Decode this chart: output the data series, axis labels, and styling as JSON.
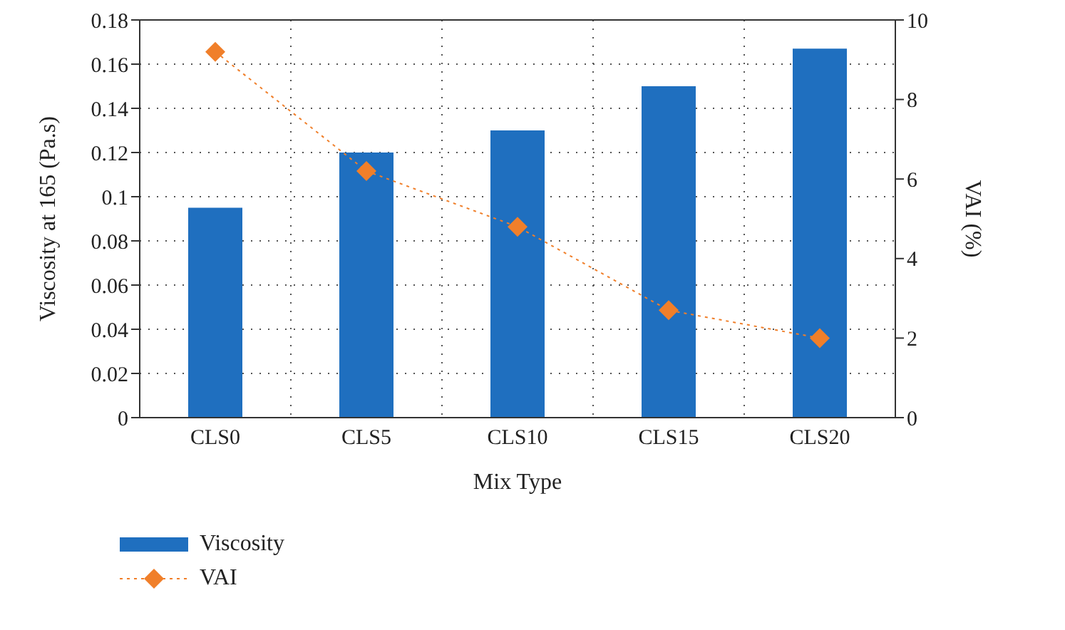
{
  "chart_data": {
    "type": "bar",
    "xlabel": "Mix Type",
    "ylabel": "Viscosity at 165 (Pa.s)",
    "y2label": "VAI (%)",
    "categories": [
      "CLS0",
      "CLS5",
      "CLS10",
      "CLS15",
      "CLS20"
    ],
    "series": [
      {
        "name": "Viscosity",
        "color": "#1f6fbf",
        "values": [
          0.095,
          0.12,
          0.13,
          0.15,
          0.167
        ]
      },
      {
        "name": "VAI",
        "type": "line",
        "axis": "y2",
        "color": "#f07f2a",
        "marker": "diamond",
        "line_style": "dotted",
        "values": [
          9.2,
          6.2,
          4.8,
          2.7,
          2.0
        ]
      }
    ],
    "ylim": [
      0,
      0.18
    ],
    "yticks": [
      0,
      0.02,
      0.04,
      0.06,
      0.08,
      0.1,
      0.12,
      0.14,
      0.16,
      0.18
    ],
    "y2lim": [
      0,
      10
    ],
    "y2ticks": [
      0,
      2,
      4,
      6,
      8,
      10
    ],
    "grid": true,
    "legend": "bottom left"
  }
}
